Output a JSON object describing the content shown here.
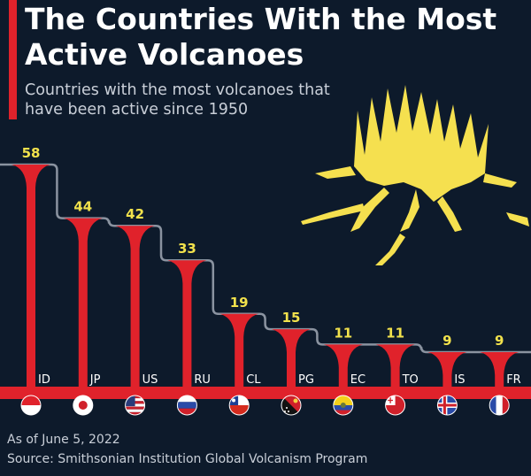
{
  "title": "The Countries With the Most Active Volcanoes",
  "subtitle": "Countries with the most volcanoes that have been active since 1950",
  "footer": {
    "date": "As of June 5, 2022",
    "source": "Source: Smithsonian Institution Global Volcanism Program"
  },
  "colors": {
    "background": "#0d1a2b",
    "accent": "#e0222b",
    "value_label": "#f2e24c",
    "volcano": "#f5e04f",
    "step_line": "#8a93a0"
  },
  "chart_data": {
    "type": "bar",
    "title": "The Countries With the Most Active Volcanoes",
    "subtitle": "Countries with the most volcanoes that have been active since 1950",
    "categories": [
      "ID",
      "JP",
      "US",
      "RU",
      "CL",
      "PG",
      "EC",
      "TO",
      "IS",
      "FR"
    ],
    "values": [
      58,
      44,
      42,
      33,
      19,
      15,
      11,
      11,
      9,
      9
    ],
    "xlabel": "",
    "ylabel": "",
    "ylim": [
      0,
      58
    ],
    "grid": false,
    "legend": "none",
    "flag_icons": [
      "flag-indonesia-icon",
      "flag-japan-icon",
      "flag-usa-icon",
      "flag-russia-icon",
      "flag-chile-icon",
      "flag-papua-new-guinea-icon",
      "flag-ecuador-icon",
      "flag-tonga-icon",
      "flag-iceland-icon",
      "flag-france-icon"
    ]
  }
}
